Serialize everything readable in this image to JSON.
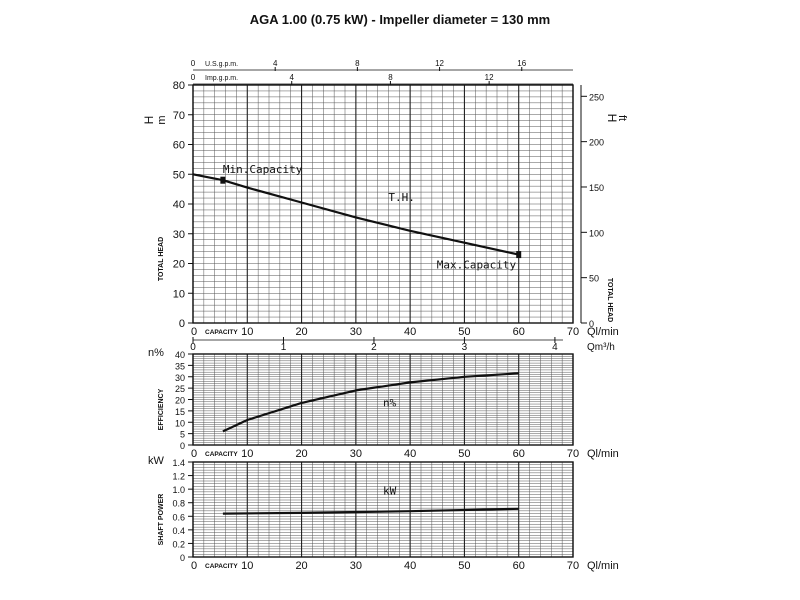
{
  "title": "AGA 1.00 (0.75 kW) - Impeller diameter = 130 mm",
  "chart_data": [
    {
      "type": "line",
      "name": "head",
      "xlabel_inline": "CAPACITY",
      "x_unit": "Ql/min",
      "xlim": [
        0,
        70
      ],
      "x_ticks": [
        0,
        10,
        20,
        30,
        40,
        50,
        60,
        70
      ],
      "ylim": [
        0,
        80
      ],
      "y_ticks": [
        0,
        10,
        20,
        30,
        40,
        50,
        60,
        70,
        80
      ],
      "ylabel": "TOTAL HEAD",
      "y_unit_label": "H",
      "y_unit": "m",
      "right_ylabel": "TOTAL HEAD",
      "right_unit_label": "H",
      "right_unit": "ft",
      "right_ticks": [
        "0",
        "50",
        "100",
        "150",
        "200",
        "250"
      ],
      "right_tick_values_m": [
        0,
        15.24,
        30.48,
        45.72,
        60.96,
        76.2
      ],
      "top_axes": [
        {
          "label": "U.S.g.p.m.",
          "zero": "0",
          "ticks": [
            "4",
            "8",
            "12",
            "16"
          ],
          "lpm_per_unit": 3.785
        },
        {
          "label": "Imp.g.p.m.",
          "zero": "0",
          "ticks": [
            "4",
            "8",
            "12"
          ],
          "lpm_per_unit": 4.546
        }
      ],
      "bottom_secondary_axis": {
        "unit": "Qm³/h",
        "ticks": [
          "0",
          "1",
          "2",
          "3",
          "4"
        ],
        "lpm_per_unit": 16.667
      },
      "grid": true,
      "series": [
        {
          "name": "T.H.",
          "x": [
            0,
            5.5,
            10,
            20,
            30,
            40,
            50,
            60
          ],
          "y": [
            50,
            48,
            45.5,
            40.5,
            35.5,
            31,
            27,
            23
          ]
        }
      ],
      "annotations": [
        {
          "text": "Min.Capacity",
          "x": 5.5,
          "y": 48
        },
        {
          "text": "T.H.",
          "x": 36,
          "y": 41
        },
        {
          "text": "Max.Capacity",
          "x": 60,
          "y": 23
        }
      ]
    },
    {
      "type": "line",
      "name": "efficiency",
      "xlabel_inline": "CAPACITY",
      "x_unit": "Ql/min",
      "xlim": [
        0,
        70
      ],
      "x_ticks": [
        0,
        10,
        20,
        30,
        40,
        50,
        60,
        70
      ],
      "ylim": [
        0,
        40
      ],
      "y_ticks": [
        0,
        5,
        10,
        15,
        20,
        25,
        30,
        35,
        40
      ],
      "ylabel": "EFFICIENCY",
      "y_unit": "n%",
      "grid": true,
      "series": [
        {
          "name": "n%",
          "x": [
            5.5,
            10,
            20,
            30,
            40,
            50,
            60
          ],
          "y": [
            6,
            11,
            18.5,
            24,
            27.5,
            30,
            31.5
          ]
        }
      ],
      "annotations": [
        {
          "text": "n%",
          "x": 35,
          "y": 17
        }
      ]
    },
    {
      "type": "line",
      "name": "power",
      "xlabel_inline": "CAPACITY",
      "x_unit": "Ql/min",
      "xlim": [
        0,
        70
      ],
      "x_ticks": [
        0,
        10,
        20,
        30,
        40,
        50,
        60,
        70
      ],
      "ylim": [
        0,
        1.4
      ],
      "y_ticks": [
        "0",
        "0.2",
        "0.4",
        "0.6",
        "0.8",
        "1.0",
        "1.2",
        "1.4"
      ],
      "ylabel": "SHAFT POWER",
      "y_unit": "kW",
      "grid": true,
      "series": [
        {
          "name": "kW",
          "x": [
            5.5,
            20,
            40,
            60
          ],
          "y": [
            0.64,
            0.65,
            0.675,
            0.71
          ]
        }
      ],
      "annotations": [
        {
          "text": "kW",
          "x": 35,
          "y": 0.92
        }
      ]
    }
  ]
}
